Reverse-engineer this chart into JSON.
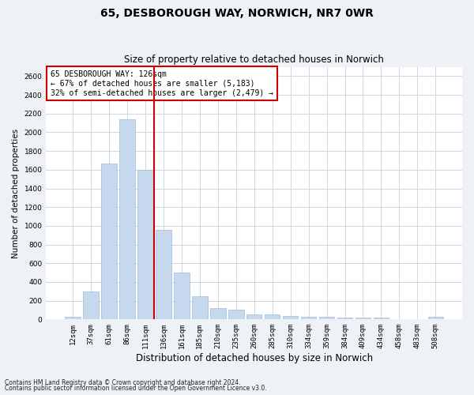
{
  "title1": "65, DESBOROUGH WAY, NORWICH, NR7 0WR",
  "title2": "Size of property relative to detached houses in Norwich",
  "xlabel": "Distribution of detached houses by size in Norwich",
  "ylabel": "Number of detached properties",
  "categories": [
    "12sqm",
    "37sqm",
    "61sqm",
    "86sqm",
    "111sqm",
    "136sqm",
    "161sqm",
    "185sqm",
    "210sqm",
    "235sqm",
    "260sqm",
    "285sqm",
    "310sqm",
    "334sqm",
    "359sqm",
    "384sqm",
    "409sqm",
    "434sqm",
    "458sqm",
    "483sqm",
    "508sqm"
  ],
  "values": [
    25,
    300,
    1670,
    2140,
    1600,
    960,
    505,
    250,
    120,
    100,
    50,
    50,
    35,
    25,
    25,
    20,
    20,
    20,
    5,
    5,
    25
  ],
  "bar_color": "#c5d8ed",
  "bar_edge_color": "#a0bcd8",
  "vline_color": "#cc0000",
  "annotation_text": "65 DESBOROUGH WAY: 126sqm\n← 67% of detached houses are smaller (5,183)\n32% of semi-detached houses are larger (2,479) →",
  "annotation_box_color": "#ffffff",
  "annotation_box_edge_color": "#cc0000",
  "footer1": "Contains HM Land Registry data © Crown copyright and database right 2024.",
  "footer2": "Contains public sector information licensed under the Open Government Licence v3.0.",
  "ylim": [
    0,
    2700
  ],
  "yticks": [
    0,
    200,
    400,
    600,
    800,
    1000,
    1200,
    1400,
    1600,
    1800,
    2000,
    2200,
    2400,
    2600
  ],
  "bg_color": "#eef2f7",
  "plot_bg_color": "#ffffff",
  "grid_color": "#c8d8e8",
  "title1_fontsize": 10,
  "title2_fontsize": 8.5,
  "xlabel_fontsize": 8.5,
  "ylabel_fontsize": 7.5,
  "tick_fontsize": 6.5,
  "annotation_fontsize": 7,
  "footer_fontsize": 5.5,
  "vline_x": 4.5
}
